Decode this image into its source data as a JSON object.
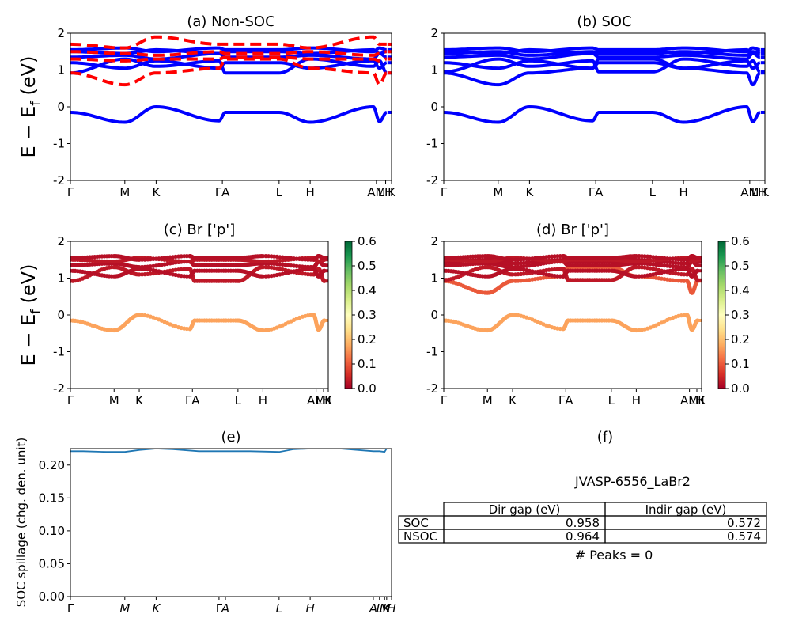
{
  "figure": {
    "material": "JVASP-6556_LaBr2",
    "peaks_text": "# Peaks = 0",
    "ylabel_main": "E − E",
    "ylabel_sub": "f",
    "ylabel_unit": " (eV)",
    "spillage_ylabel": "SOC spillage (chg. den. unit)"
  },
  "colors": {
    "nonsoc_spin_up": "#0000ff",
    "nonsoc_spin_down": "#ff0000",
    "soc": "#0000ff",
    "spillage": "#1f77b4",
    "colormap": [
      "#a50026",
      "#d73027",
      "#f46d43",
      "#fdae61",
      "#fee08b",
      "#ffffbf",
      "#d9ef8b",
      "#a6d96a",
      "#66bd63",
      "#1a9850",
      "#006837"
    ]
  },
  "kpath": {
    "labels": [
      "Γ",
      "M",
      "K",
      "Γ",
      "A",
      "L",
      "H",
      "A",
      "M",
      "L",
      "H",
      "K"
    ],
    "positions": [
      0,
      0.212,
      0.334,
      0.579,
      0.604,
      0.813,
      0.934,
      1.18,
      1.204,
      1.224,
      1.232,
      1.251
    ],
    "range": [
      0,
      1.251
    ]
  },
  "table": {
    "col_headers": [
      "Dir gap (eV)",
      "Indir gap (eV)"
    ],
    "rows": [
      {
        "label": "SOC",
        "dir": "0.958",
        "indir": "0.572"
      },
      {
        "label": "NSOC",
        "dir": "0.964",
        "indir": "0.574"
      }
    ]
  },
  "chart_data": [
    {
      "id": "a",
      "type": "line",
      "title": "(a) Non-SOC",
      "ylim": [
        -2,
        2
      ],
      "yticks": [
        -2,
        -1,
        0,
        1,
        2
      ],
      "xtick_labels": [
        "Γ",
        "M",
        "K",
        "ΓA",
        "L",
        "H",
        "AM",
        "LH",
        "K"
      ],
      "series": [
        {
          "values": [
            -0.15,
            -0.42,
            0.0,
            -0.38,
            -0.15,
            -0.15,
            -0.42,
            0.0,
            -0.4,
            -0.15
          ]
        },
        {
          "values": [
            0.92,
            1.3,
            1.1,
            1.25,
            0.92,
            0.92,
            1.3,
            1.1,
            1.25,
            0.92
          ]
        },
        {
          "values": [
            1.2,
            1.05,
            1.25,
            1.05,
            1.2,
            1.2,
            1.05,
            1.25,
            1.05,
            1.2
          ]
        },
        {
          "values": [
            1.35,
            1.4,
            1.3,
            1.45,
            1.35,
            1.35,
            1.4,
            1.3,
            1.45,
            1.35
          ]
        },
        {
          "values": [
            1.5,
            1.45,
            1.55,
            1.45,
            1.5,
            1.5,
            1.45,
            1.55,
            1.45,
            1.5
          ]
        },
        {
          "values": [
            1.55,
            1.6,
            1.5,
            1.6,
            1.55,
            1.55,
            1.6,
            1.5,
            1.6,
            1.55
          ]
        },
        {
          "values": [
            0.92,
            0.6,
            0.92,
            1.05,
            1.3,
            1.3,
            1.05,
            0.92,
            0.6,
            0.92
          ],
          "spin": "down"
        },
        {
          "values": [
            1.3,
            1.25,
            1.3,
            1.3,
            1.35,
            1.35,
            1.3,
            1.3,
            1.25,
            1.3
          ],
          "spin": "down"
        },
        {
          "values": [
            1.5,
            1.45,
            1.4,
            1.5,
            1.45,
            1.45,
            1.5,
            1.4,
            1.45,
            1.5
          ],
          "spin": "down"
        },
        {
          "values": [
            1.7,
            1.6,
            1.9,
            1.7,
            1.7,
            1.7,
            1.6,
            1.9,
            1.7,
            1.7
          ],
          "spin": "down"
        }
      ]
    },
    {
      "id": "b",
      "type": "line",
      "title": "(b) SOC",
      "ylim": [
        -2,
        2
      ],
      "yticks": [
        -2,
        -1,
        0,
        1,
        2
      ],
      "xtick_labels": [
        "Γ",
        "M",
        "K",
        "ΓA",
        "L",
        "H",
        "AM",
        "LH",
        "K"
      ],
      "series": [
        {
          "values": [
            -0.15,
            -0.42,
            0.0,
            -0.38,
            -0.15,
            -0.15,
            -0.42,
            0.0,
            -0.4,
            -0.15
          ]
        },
        {
          "values": [
            0.92,
            0.6,
            0.92,
            1.05,
            1.3,
            1.3,
            1.05,
            0.92,
            0.6,
            0.92
          ]
        },
        {
          "values": [
            0.95,
            1.3,
            1.1,
            1.25,
            0.95,
            0.95,
            1.3,
            1.1,
            1.25,
            0.95
          ]
        },
        {
          "values": [
            1.2,
            1.05,
            1.25,
            1.05,
            1.2,
            1.2,
            1.05,
            1.25,
            1.05,
            1.2
          ]
        },
        {
          "values": [
            1.35,
            1.4,
            1.3,
            1.45,
            1.35,
            1.35,
            1.4,
            1.3,
            1.45,
            1.35
          ]
        },
        {
          "values": [
            1.45,
            1.5,
            1.4,
            1.5,
            1.45,
            1.45,
            1.5,
            1.4,
            1.5,
            1.45
          ]
        },
        {
          "values": [
            1.5,
            1.45,
            1.55,
            1.45,
            1.5,
            1.5,
            1.45,
            1.55,
            1.45,
            1.5
          ]
        },
        {
          "values": [
            1.55,
            1.6,
            1.5,
            1.6,
            1.55,
            1.55,
            1.6,
            1.5,
            1.6,
            1.55
          ]
        }
      ]
    },
    {
      "id": "c",
      "type": "scatter",
      "title": "(c)  Br ['p']",
      "ylim": [
        -2,
        2
      ],
      "yticks": [
        -2,
        -1,
        0,
        1,
        2
      ],
      "xtick_labels": [
        "Γ",
        "M",
        "K",
        "ΓA",
        "L",
        "H",
        "AM",
        "LH",
        "K"
      ],
      "colorbar": {
        "min": 0.0,
        "max": 0.6,
        "ticks": [
          "0.0",
          "0.1",
          "0.2",
          "0.3",
          "0.4",
          "0.5",
          "0.6"
        ]
      },
      "series": [
        {
          "values": [
            -0.15,
            -0.42,
            0.0,
            -0.38,
            -0.15,
            -0.15,
            -0.42,
            0.0,
            -0.4,
            -0.15
          ],
          "weight": 0.17
        },
        {
          "values": [
            0.92,
            1.3,
            1.1,
            1.25,
            0.92,
            0.92,
            1.3,
            1.1,
            1.25,
            0.92
          ],
          "weight": 0.03
        },
        {
          "values": [
            1.2,
            1.05,
            1.25,
            1.05,
            1.2,
            1.2,
            1.05,
            1.25,
            1.05,
            1.2
          ],
          "weight": 0.02
        },
        {
          "values": [
            1.35,
            1.4,
            1.3,
            1.45,
            1.35,
            1.35,
            1.4,
            1.3,
            1.45,
            1.35
          ],
          "weight": 0.02
        },
        {
          "values": [
            1.5,
            1.45,
            1.55,
            1.45,
            1.5,
            1.5,
            1.45,
            1.55,
            1.45,
            1.5
          ],
          "weight": 0.03
        },
        {
          "values": [
            1.55,
            1.6,
            1.5,
            1.6,
            1.55,
            1.55,
            1.6,
            1.5,
            1.6,
            1.55
          ],
          "weight": 0.02
        }
      ]
    },
    {
      "id": "d",
      "type": "scatter",
      "title": "(d) Br ['p']",
      "ylim": [
        -2,
        2
      ],
      "yticks": [
        -2,
        -1,
        0,
        1,
        2
      ],
      "xtick_labels": [
        "Γ",
        "M",
        "K",
        "ΓA",
        "L",
        "H",
        "AM",
        "LH",
        "K"
      ],
      "colorbar": {
        "min": 0.0,
        "max": 0.6,
        "ticks": [
          "0.0",
          "0.1",
          "0.2",
          "0.3",
          "0.4",
          "0.5",
          "0.6"
        ]
      },
      "series": [
        {
          "values": [
            -0.15,
            -0.42,
            0.0,
            -0.38,
            -0.15,
            -0.15,
            -0.42,
            0.0,
            -0.4,
            -0.15
          ],
          "weight": 0.17
        },
        {
          "values": [
            0.92,
            0.6,
            0.92,
            1.05,
            1.3,
            1.3,
            1.05,
            0.92,
            0.6,
            0.92
          ],
          "weight": 0.1
        },
        {
          "values": [
            0.95,
            1.3,
            1.1,
            1.25,
            0.95,
            0.95,
            1.3,
            1.1,
            1.25,
            0.95
          ],
          "weight": 0.03
        },
        {
          "values": [
            1.2,
            1.05,
            1.25,
            1.05,
            1.2,
            1.2,
            1.05,
            1.25,
            1.05,
            1.2
          ],
          "weight": 0.02
        },
        {
          "values": [
            1.35,
            1.4,
            1.3,
            1.45,
            1.35,
            1.35,
            1.4,
            1.3,
            1.45,
            1.35
          ],
          "weight": 0.02
        },
        {
          "values": [
            1.45,
            1.5,
            1.4,
            1.5,
            1.45,
            1.45,
            1.5,
            1.4,
            1.5,
            1.45
          ],
          "weight": 0.02
        },
        {
          "values": [
            1.5,
            1.45,
            1.55,
            1.45,
            1.5,
            1.5,
            1.45,
            1.55,
            1.45,
            1.5
          ],
          "weight": 0.03
        },
        {
          "values": [
            1.55,
            1.6,
            1.5,
            1.6,
            1.55,
            1.55,
            1.6,
            1.5,
            1.6,
            1.55
          ],
          "weight": 0.02
        }
      ]
    },
    {
      "id": "e",
      "type": "line",
      "title": "(e)",
      "ylim": [
        0,
        0.225
      ],
      "yticks": [
        0.0,
        0.05,
        0.1,
        0.15,
        0.2
      ],
      "ytick_labels": [
        "0.00",
        "0.05",
        "0.10",
        "0.15",
        "0.20"
      ],
      "xtick_labels": [
        "Γ",
        "M",
        "K",
        "Γ",
        "A",
        "L",
        "H",
        "A",
        "L",
        "M",
        "K",
        "H"
      ],
      "series": [
        {
          "x": [
            0,
            0.05,
            0.14,
            0.212,
            0.27,
            0.334,
            0.4,
            0.5,
            0.579,
            0.604,
            0.7,
            0.813,
            0.87,
            0.934,
            1.05,
            1.18,
            1.204,
            1.224,
            1.232,
            1.251
          ],
          "values": [
            0.221,
            0.221,
            0.22,
            0.22,
            0.223,
            0.225,
            0.224,
            0.221,
            0.221,
            0.221,
            0.221,
            0.22,
            0.224,
            0.225,
            0.225,
            0.221,
            0.221,
            0.22,
            0.225,
            0.225
          ]
        }
      ]
    }
  ],
  "panel_f": {
    "title": "(f)"
  }
}
